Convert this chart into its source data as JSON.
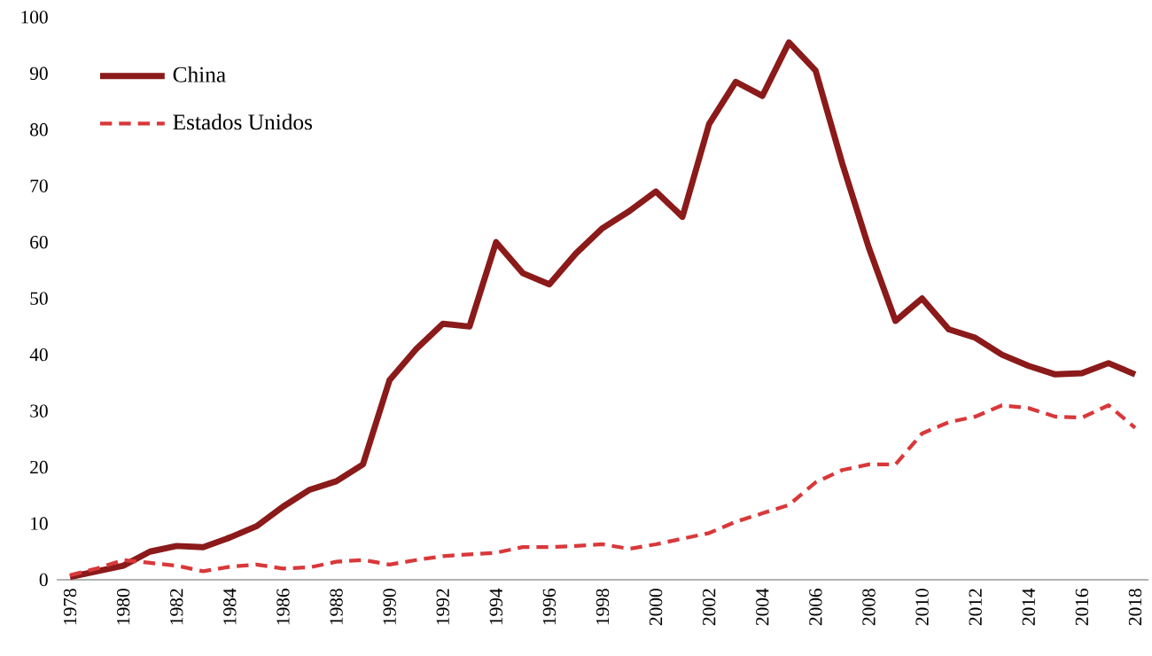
{
  "chart_data": {
    "type": "line",
    "x": [
      1978,
      1979,
      1980,
      1981,
      1982,
      1983,
      1984,
      1985,
      1986,
      1987,
      1988,
      1989,
      1990,
      1991,
      1992,
      1993,
      1994,
      1995,
      1996,
      1997,
      1998,
      1999,
      2000,
      2001,
      2002,
      2003,
      2004,
      2005,
      2006,
      2007,
      2008,
      2009,
      2010,
      2011,
      2012,
      2013,
      2014,
      2015,
      2016,
      2017,
      2018
    ],
    "series": [
      {
        "name": "China",
        "color": "#8b1a1a",
        "line_style": "solid",
        "values": [
          0.5,
          1.5,
          2.5,
          5,
          6,
          5.8,
          7.5,
          9.5,
          13,
          16,
          17.5,
          20.5,
          35.5,
          41,
          45.5,
          45,
          60,
          54.5,
          52.5,
          58,
          62.5,
          65.5,
          69,
          64.5,
          81,
          88.5,
          86,
          95.5,
          90.5,
          74,
          59,
          46,
          50,
          44.5,
          43,
          40,
          38,
          36.5,
          36.7,
          38.5,
          36.5
        ]
      },
      {
        "name": "Estados Unidos",
        "color": "#d9383a",
        "line_style": "dashed",
        "values": [
          0.8,
          2,
          3.5,
          3,
          2.5,
          1.5,
          2.3,
          2.7,
          2,
          2.2,
          3.2,
          3.5,
          2.7,
          3.5,
          4.2,
          4.5,
          4.8,
          5.8,
          5.8,
          6,
          6.3,
          5.5,
          6.3,
          7.3,
          8.3,
          10.3,
          11.8,
          13.3,
          17.3,
          19.5,
          20.5,
          20.5,
          26,
          28,
          29,
          31,
          30.5,
          29,
          28.8,
          31,
          27
        ]
      }
    ],
    "xlim": [
      1977.5,
      2018.5
    ],
    "xticks": [
      1978,
      1980,
      1982,
      1984,
      1986,
      1988,
      1990,
      1992,
      1994,
      1996,
      1998,
      2000,
      2002,
      2004,
      2006,
      2008,
      2010,
      2012,
      2014,
      2016,
      2018
    ],
    "ylim": [
      0,
      100
    ],
    "yticks": [
      0,
      10,
      20,
      30,
      40,
      50,
      60,
      70,
      80,
      90,
      100
    ],
    "legend": "top left",
    "grid": false,
    "marker": "none"
  }
}
